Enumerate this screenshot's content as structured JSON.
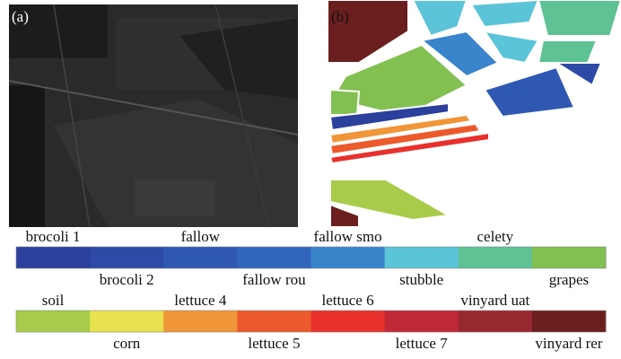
{
  "panels": [
    {
      "label": "(a)"
    },
    {
      "label": "(b)"
    }
  ],
  "legend": {
    "rows": [
      [
        {
          "name": "brocoli 1",
          "color": "#2b3f9c"
        },
        {
          "name": "brocoli 2",
          "color": "#2c4aa6"
        },
        {
          "name": "fallow",
          "color": "#2e58b2"
        },
        {
          "name": "fallow rou",
          "color": "#3266bc"
        },
        {
          "name": "fallow smo",
          "color": "#3a84cc"
        },
        {
          "name": "stubble",
          "color": "#5cc4d8"
        },
        {
          "name": "celety",
          "color": "#5ec294"
        },
        {
          "name": "grapes",
          "color": "#82c052"
        }
      ],
      [
        {
          "name": "soil",
          "color": "#a8cc4a"
        },
        {
          "name": "corn",
          "color": "#e8e24e"
        },
        {
          "name": "lettuce 4",
          "color": "#f09638"
        },
        {
          "name": "lettuce 5",
          "color": "#ec5a2c"
        },
        {
          "name": "lettuce 6",
          "color": "#e8302c"
        },
        {
          "name": "lettuce 7",
          "color": "#c02838"
        },
        {
          "name": "vinyard uat",
          "color": "#982830"
        },
        {
          "name": "vinyard rer",
          "color": "#6a1e1e"
        }
      ]
    ]
  }
}
